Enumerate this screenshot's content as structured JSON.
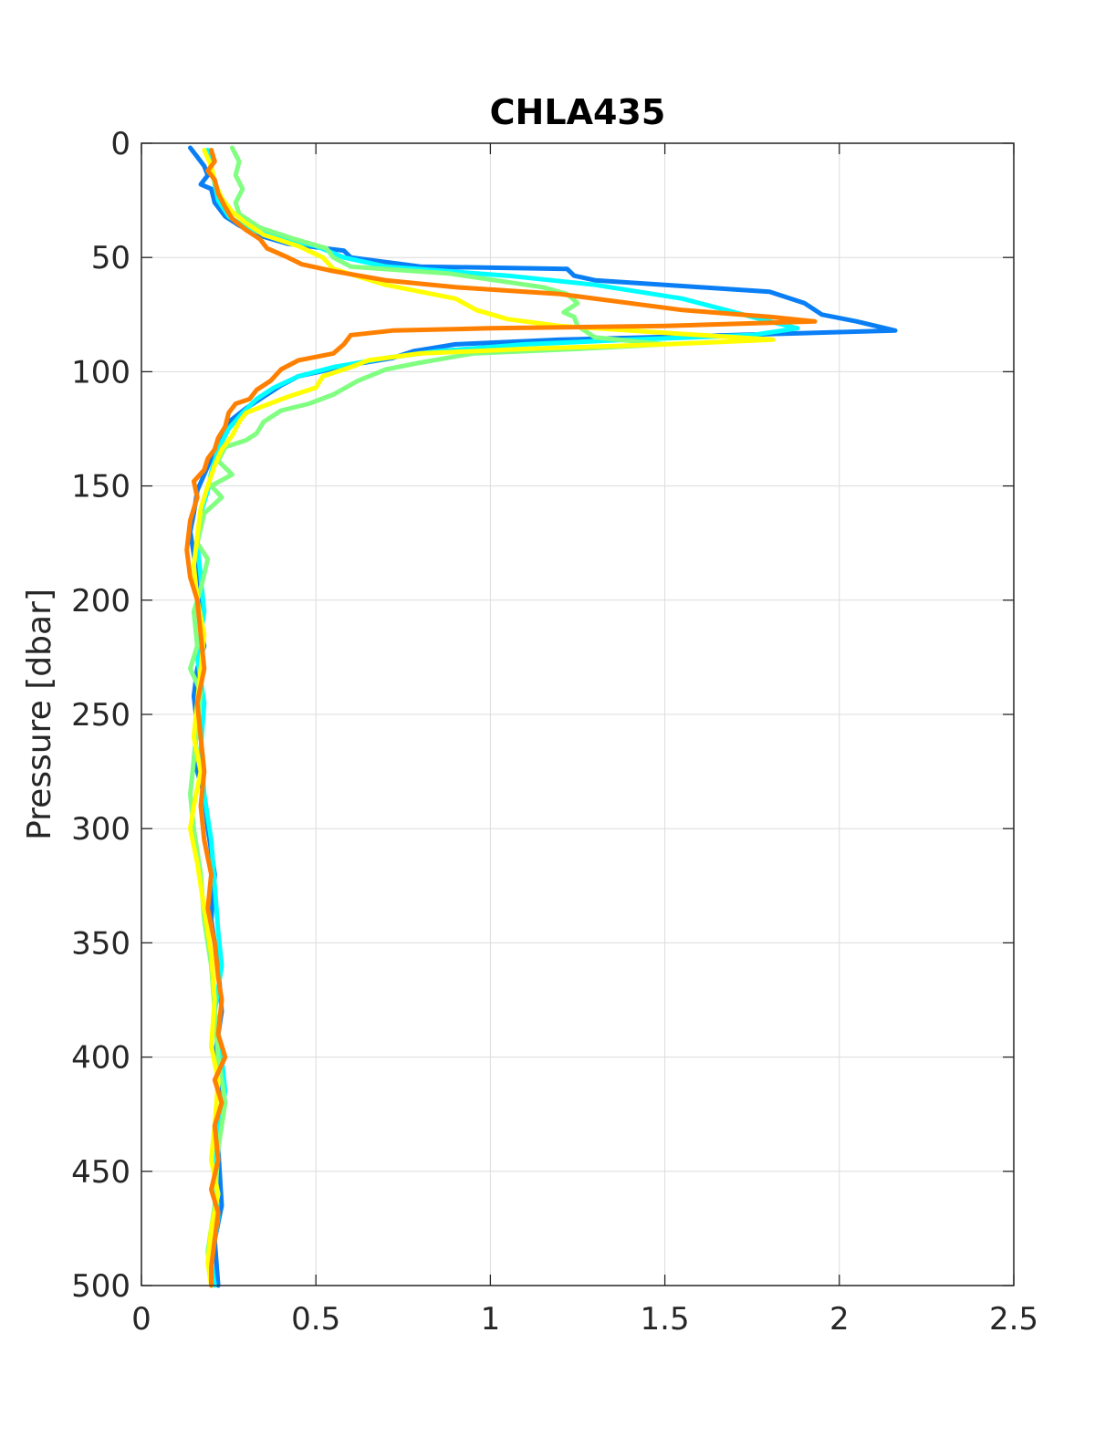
{
  "chart_data": {
    "type": "line",
    "title": "CHLA435",
    "xlabel": "",
    "ylabel": "Pressure [dbar]",
    "xlim": [
      0,
      2.5
    ],
    "ylim": [
      0,
      500
    ],
    "y_reversed": true,
    "grid": true,
    "xticks": [
      0,
      0.5,
      1,
      1.5,
      2,
      2.5
    ],
    "xtick_labels": [
      "0",
      "0.5",
      "1",
      "1.5",
      "2",
      "2.5"
    ],
    "yticks": [
      0,
      50,
      100,
      150,
      200,
      250,
      300,
      350,
      400,
      450,
      500
    ],
    "ytick_labels": [
      "0",
      "50",
      "100",
      "150",
      "200",
      "250",
      "300",
      "350",
      "400",
      "450",
      "500"
    ],
    "series": [
      {
        "color": "#0A7FF5",
        "points": [
          [
            0.14,
            2
          ],
          [
            0.16,
            6
          ],
          [
            0.18,
            10
          ],
          [
            0.19,
            14
          ],
          [
            0.17,
            18
          ],
          [
            0.2,
            20
          ],
          [
            0.21,
            26
          ],
          [
            0.24,
            32
          ],
          [
            0.28,
            36
          ],
          [
            0.33,
            40
          ],
          [
            0.42,
            44
          ],
          [
            0.58,
            47
          ],
          [
            0.6,
            50
          ],
          [
            0.8,
            54
          ],
          [
            1.22,
            55
          ],
          [
            1.24,
            58
          ],
          [
            1.3,
            60
          ],
          [
            1.6,
            63
          ],
          [
            1.8,
            65
          ],
          [
            1.9,
            70
          ],
          [
            1.95,
            75
          ],
          [
            2.05,
            78
          ],
          [
            2.16,
            82
          ],
          [
            1.7,
            84
          ],
          [
            1.2,
            86
          ],
          [
            0.9,
            88
          ],
          [
            0.78,
            91
          ],
          [
            0.72,
            94
          ],
          [
            0.6,
            97
          ],
          [
            0.45,
            102
          ],
          [
            0.4,
            106
          ],
          [
            0.35,
            111
          ],
          [
            0.3,
            116
          ],
          [
            0.25,
            122
          ],
          [
            0.22,
            130
          ],
          [
            0.2,
            138
          ],
          [
            0.18,
            145
          ],
          [
            0.16,
            152
          ],
          [
            0.15,
            162
          ],
          [
            0.14,
            170
          ],
          [
            0.15,
            180
          ],
          [
            0.16,
            190
          ],
          [
            0.17,
            200
          ],
          [
            0.17,
            210
          ],
          [
            0.18,
            220
          ],
          [
            0.16,
            230
          ],
          [
            0.15,
            242
          ],
          [
            0.16,
            255
          ],
          [
            0.15,
            270
          ],
          [
            0.18,
            285
          ],
          [
            0.19,
            300
          ],
          [
            0.21,
            320
          ],
          [
            0.2,
            340
          ],
          [
            0.22,
            360
          ],
          [
            0.23,
            380
          ],
          [
            0.21,
            400
          ],
          [
            0.23,
            420
          ],
          [
            0.22,
            440
          ],
          [
            0.23,
            465
          ],
          [
            0.21,
            480
          ],
          [
            0.22,
            500
          ]
        ]
      },
      {
        "color": "#00FFFF",
        "points": [
          [
            0.19,
            3
          ],
          [
            0.2,
            10
          ],
          [
            0.21,
            18
          ],
          [
            0.22,
            25
          ],
          [
            0.25,
            32
          ],
          [
            0.3,
            37
          ],
          [
            0.38,
            41
          ],
          [
            0.5,
            45
          ],
          [
            0.58,
            50
          ],
          [
            0.7,
            54
          ],
          [
            1.05,
            58
          ],
          [
            1.3,
            62
          ],
          [
            1.55,
            68
          ],
          [
            1.7,
            74
          ],
          [
            1.8,
            78
          ],
          [
            1.88,
            81
          ],
          [
            1.75,
            84
          ],
          [
            1.4,
            86
          ],
          [
            1.1,
            88
          ],
          [
            0.85,
            91
          ],
          [
            0.7,
            94
          ],
          [
            0.55,
            98
          ],
          [
            0.45,
            102
          ],
          [
            0.38,
            107
          ],
          [
            0.33,
            112
          ],
          [
            0.29,
            118
          ],
          [
            0.25,
            125
          ],
          [
            0.22,
            134
          ],
          [
            0.2,
            144
          ],
          [
            0.19,
            152
          ],
          [
            0.17,
            162
          ],
          [
            0.16,
            175
          ],
          [
            0.17,
            190
          ],
          [
            0.18,
            205
          ],
          [
            0.16,
            225
          ],
          [
            0.18,
            245
          ],
          [
            0.17,
            265
          ],
          [
            0.18,
            285
          ],
          [
            0.2,
            305
          ],
          [
            0.21,
            325
          ],
          [
            0.22,
            345
          ],
          [
            0.23,
            360
          ],
          [
            0.21,
            380
          ],
          [
            0.23,
            400
          ],
          [
            0.24,
            415
          ],
          [
            0.22,
            430
          ],
          [
            0.21,
            455
          ],
          [
            0.22,
            470
          ],
          [
            0.2,
            490
          ],
          [
            0.21,
            500
          ]
        ]
      },
      {
        "color": "#80FF80",
        "points": [
          [
            0.26,
            2
          ],
          [
            0.28,
            8
          ],
          [
            0.27,
            14
          ],
          [
            0.29,
            20
          ],
          [
            0.27,
            26
          ],
          [
            0.28,
            31
          ],
          [
            0.34,
            37
          ],
          [
            0.44,
            42
          ],
          [
            0.53,
            46
          ],
          [
            0.55,
            50
          ],
          [
            0.6,
            54
          ],
          [
            0.88,
            57
          ],
          [
            1.15,
            63
          ],
          [
            1.22,
            66
          ],
          [
            1.25,
            70
          ],
          [
            1.21,
            74
          ],
          [
            1.24,
            76
          ],
          [
            1.25,
            80
          ],
          [
            1.3,
            85
          ],
          [
            1.5,
            88
          ],
          [
            1.25,
            90
          ],
          [
            0.95,
            92
          ],
          [
            0.8,
            96
          ],
          [
            0.7,
            99
          ],
          [
            0.62,
            104
          ],
          [
            0.55,
            110
          ],
          [
            0.48,
            114
          ],
          [
            0.4,
            117
          ],
          [
            0.35,
            122
          ],
          [
            0.33,
            127
          ],
          [
            0.3,
            130
          ],
          [
            0.24,
            133
          ],
          [
            0.22,
            139
          ],
          [
            0.26,
            145
          ],
          [
            0.2,
            150
          ],
          [
            0.23,
            155
          ],
          [
            0.18,
            162
          ],
          [
            0.16,
            175
          ],
          [
            0.19,
            182
          ],
          [
            0.17,
            195
          ],
          [
            0.15,
            205
          ],
          [
            0.16,
            220
          ],
          [
            0.14,
            230
          ],
          [
            0.17,
            240
          ],
          [
            0.16,
            255
          ],
          [
            0.15,
            270
          ],
          [
            0.14,
            285
          ],
          [
            0.15,
            300
          ],
          [
            0.17,
            320
          ],
          [
            0.18,
            340
          ],
          [
            0.2,
            360
          ],
          [
            0.21,
            380
          ],
          [
            0.22,
            400
          ],
          [
            0.24,
            420
          ],
          [
            0.22,
            440
          ],
          [
            0.21,
            465
          ],
          [
            0.19,
            485
          ],
          [
            0.2,
            500
          ]
        ]
      },
      {
        "color": "#FFFF00",
        "points": [
          [
            0.18,
            3
          ],
          [
            0.2,
            10
          ],
          [
            0.21,
            17
          ],
          [
            0.23,
            24
          ],
          [
            0.26,
            30
          ],
          [
            0.3,
            35
          ],
          [
            0.35,
            40
          ],
          [
            0.45,
            45
          ],
          [
            0.52,
            50
          ],
          [
            0.55,
            55
          ],
          [
            0.7,
            62
          ],
          [
            0.9,
            68
          ],
          [
            0.96,
            73
          ],
          [
            1.05,
            77
          ],
          [
            1.2,
            80
          ],
          [
            1.5,
            83
          ],
          [
            1.81,
            86
          ],
          [
            1.5,
            88
          ],
          [
            1.1,
            90
          ],
          [
            0.8,
            92
          ],
          [
            0.65,
            95
          ],
          [
            0.6,
            98
          ],
          [
            0.52,
            102
          ],
          [
            0.5,
            107
          ],
          [
            0.42,
            111
          ],
          [
            0.35,
            115
          ],
          [
            0.3,
            118
          ],
          [
            0.28,
            122
          ],
          [
            0.26,
            128
          ],
          [
            0.23,
            134
          ],
          [
            0.21,
            141
          ],
          [
            0.19,
            150
          ],
          [
            0.17,
            160
          ],
          [
            0.16,
            172
          ],
          [
            0.15,
            185
          ],
          [
            0.16,
            200
          ],
          [
            0.18,
            215
          ],
          [
            0.17,
            230
          ],
          [
            0.16,
            245
          ],
          [
            0.15,
            260
          ],
          [
            0.17,
            275
          ],
          [
            0.15,
            290
          ],
          [
            0.14,
            300
          ],
          [
            0.16,
            315
          ],
          [
            0.18,
            335
          ],
          [
            0.2,
            355
          ],
          [
            0.21,
            375
          ],
          [
            0.2,
            395
          ],
          [
            0.22,
            410
          ],
          [
            0.21,
            430
          ],
          [
            0.2,
            445
          ],
          [
            0.22,
            460
          ],
          [
            0.2,
            475
          ],
          [
            0.19,
            490
          ],
          [
            0.2,
            500
          ]
        ]
      },
      {
        "color": "#FF8000",
        "points": [
          [
            0.2,
            3
          ],
          [
            0.21,
            8
          ],
          [
            0.19,
            12
          ],
          [
            0.21,
            16
          ],
          [
            0.22,
            22
          ],
          [
            0.24,
            28
          ],
          [
            0.26,
            33
          ],
          [
            0.3,
            38
          ],
          [
            0.34,
            42
          ],
          [
            0.36,
            46
          ],
          [
            0.42,
            50
          ],
          [
            0.46,
            53
          ],
          [
            0.55,
            56
          ],
          [
            0.7,
            60
          ],
          [
            0.9,
            63
          ],
          [
            1.2,
            66
          ],
          [
            1.4,
            70
          ],
          [
            1.55,
            73
          ],
          [
            1.8,
            76
          ],
          [
            1.93,
            78
          ],
          [
            1.5,
            80
          ],
          [
            1.0,
            81
          ],
          [
            0.72,
            82
          ],
          [
            0.6,
            84
          ],
          [
            0.58,
            88
          ],
          [
            0.55,
            92
          ],
          [
            0.45,
            95
          ],
          [
            0.4,
            99
          ],
          [
            0.37,
            104
          ],
          [
            0.33,
            108
          ],
          [
            0.31,
            112
          ],
          [
            0.27,
            114
          ],
          [
            0.25,
            118
          ],
          [
            0.24,
            124
          ],
          [
            0.22,
            129
          ],
          [
            0.21,
            134
          ],
          [
            0.19,
            138
          ],
          [
            0.18,
            143
          ],
          [
            0.15,
            148
          ],
          [
            0.16,
            155
          ],
          [
            0.14,
            165
          ],
          [
            0.13,
            178
          ],
          [
            0.14,
            190
          ],
          [
            0.16,
            200
          ],
          [
            0.17,
            215
          ],
          [
            0.18,
            230
          ],
          [
            0.16,
            245
          ],
          [
            0.17,
            260
          ],
          [
            0.18,
            275
          ],
          [
            0.17,
            290
          ],
          [
            0.18,
            305
          ],
          [
            0.2,
            320
          ],
          [
            0.19,
            335
          ],
          [
            0.21,
            350
          ],
          [
            0.22,
            365
          ],
          [
            0.23,
            375
          ],
          [
            0.22,
            390
          ],
          [
            0.24,
            400
          ],
          [
            0.21,
            410
          ],
          [
            0.23,
            420
          ],
          [
            0.21,
            430
          ],
          [
            0.22,
            445
          ],
          [
            0.2,
            458
          ],
          [
            0.22,
            468
          ],
          [
            0.21,
            480
          ],
          [
            0.2,
            492
          ],
          [
            0.2,
            500
          ]
        ]
      }
    ]
  }
}
